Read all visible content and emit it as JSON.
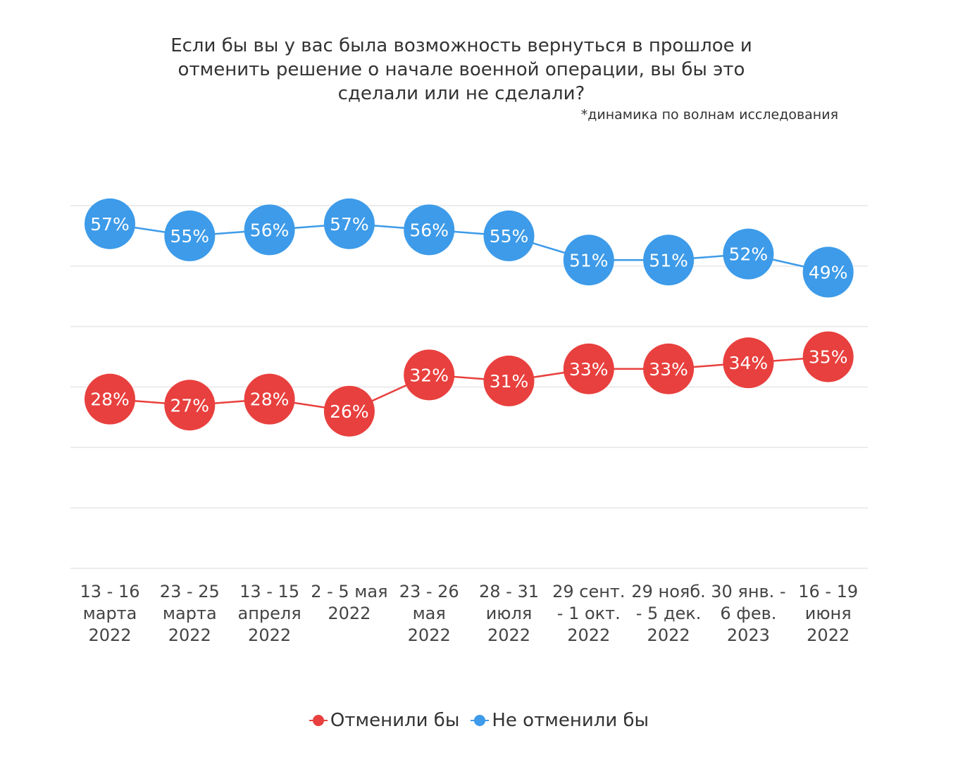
{
  "title": "Если бы вы у вас была возможность вернуться в прошлое и\nотменить решение о начале военной операции, вы бы это\nсделали или не сделали?",
  "subtitle": "*динамика по волнам исследования",
  "colors": {
    "red": "#e8403e",
    "blue": "#3d9be9",
    "grid": "#e6e6e6"
  },
  "chart_data": {
    "type": "line",
    "title": "Если бы вы у вас была возможность вернуться в прошлое и отменить решение о начале военной операции, вы бы это сделали или не сделали?",
    "subtitle": "*динамика по волнам исследования",
    "categories": [
      [
        "13 - 16",
        "марта",
        "2022"
      ],
      [
        "23 - 25",
        "марта",
        "2022"
      ],
      [
        "13 - 15",
        "апреля",
        "2022"
      ],
      [
        "2 - 5 мая",
        "2022"
      ],
      [
        "23 - 26",
        "мая",
        "2022"
      ],
      [
        "28 - 31",
        "июля",
        "2022"
      ],
      [
        "29 сент.",
        "- 1 окт.",
        "2022"
      ],
      [
        "29 нояб.",
        "- 5 дек.",
        "2022"
      ],
      [
        "30 янв. -",
        "6 фев.",
        "2023"
      ],
      [
        "16 - 19",
        "июня",
        "2022"
      ]
    ],
    "series": [
      {
        "name": "Отменили бы",
        "color": "#e8403e",
        "values": [
          28,
          27,
          28,
          26,
          32,
          31,
          33,
          33,
          34,
          35
        ],
        "labels": [
          "28%",
          "27%",
          "28%",
          "26%",
          "32%",
          "31%",
          "33%",
          "33%",
          "34%",
          "35%"
        ]
      },
      {
        "name": "Не отменили бы",
        "color": "#3d9be9",
        "values": [
          57,
          55,
          56,
          57,
          56,
          55,
          51,
          51,
          52,
          49
        ],
        "labels": [
          "57%",
          "55%",
          "56%",
          "57%",
          "56%",
          "55%",
          "51%",
          "51%",
          "52%",
          "49%"
        ]
      }
    ],
    "ylim": [
      0,
      60
    ],
    "grid": true,
    "legend": "bottom"
  },
  "legend": [
    {
      "label": "Отменили бы",
      "color": "#e8403e"
    },
    {
      "label": "Не отменили бы",
      "color": "#3d9be9"
    }
  ]
}
